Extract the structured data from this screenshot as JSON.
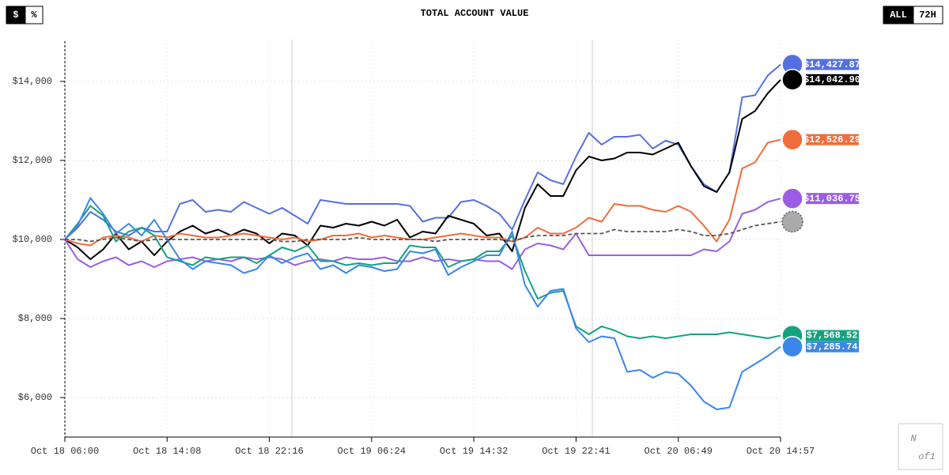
{
  "chart_data": {
    "type": "line",
    "title": "TOTAL ACCOUNT VALUE",
    "categories": [
      "Oct 18 06:00",
      null,
      null,
      null,
      null,
      null,
      null,
      null,
      "Oct 18 14:08",
      null,
      null,
      null,
      null,
      null,
      null,
      null,
      "Oct 18 22:16",
      null,
      null,
      null,
      null,
      null,
      null,
      null,
      "Oct 19 06:24",
      null,
      null,
      null,
      null,
      null,
      null,
      null,
      "Oct 19 14:32",
      null,
      null,
      null,
      null,
      null,
      null,
      null,
      "Oct 19 22:41",
      null,
      null,
      null,
      null,
      null,
      null,
      null,
      "Oct 20 06:49",
      null,
      null,
      null,
      null,
      null,
      null,
      null,
      "Oct 20 14:57"
    ],
    "series": [
      {
        "color": "#5470e0",
        "end_label": "$14,427.87",
        "values": [
          10000,
          10300,
          10700,
          10500,
          10200,
          10100,
          10300,
          10200,
          10200,
          10900,
          11000,
          10700,
          10750,
          10700,
          10950,
          10800,
          10650,
          10800,
          10600,
          10400,
          11000,
          10950,
          10900,
          10900,
          10900,
          10900,
          10900,
          10850,
          10450,
          10550,
          10550,
          10950,
          11000,
          10850,
          10650,
          10250,
          11000,
          11700,
          11500,
          11400,
          12100,
          12700,
          12400,
          12600,
          12600,
          12650,
          12300,
          12500,
          12400,
          11850,
          11400,
          11200,
          11700,
          13600,
          13650,
          14150,
          14427.87
        ]
      },
      {
        "color": "#000000",
        "end_label": "$14,042.90",
        "values": [
          10000,
          9800,
          9500,
          9750,
          10150,
          9750,
          9950,
          9600,
          9950,
          10200,
          10350,
          10150,
          10250,
          10100,
          10250,
          10150,
          9900,
          10150,
          10100,
          9850,
          10350,
          10300,
          10400,
          10350,
          10450,
          10350,
          10500,
          10050,
          10200,
          10150,
          10600,
          10500,
          10400,
          10100,
          10150,
          9700,
          10800,
          11400,
          11100,
          11100,
          11750,
          12100,
          12000,
          12050,
          12200,
          12200,
          12150,
          12300,
          12450,
          11850,
          11350,
          11200,
          11700,
          13050,
          13250,
          13700,
          14042.9
        ]
      },
      {
        "color": "#f26b3a",
        "end_label": "$12,526.29",
        "values": [
          10000,
          9900,
          9850,
          10050,
          10100,
          10050,
          9950,
          10100,
          10050,
          10150,
          10100,
          10050,
          10050,
          10100,
          10150,
          10100,
          10050,
          10000,
          10050,
          9950,
          10000,
          10100,
          10100,
          10150,
          10050,
          10100,
          10050,
          10000,
          10000,
          10050,
          10100,
          10150,
          10100,
          10050,
          10050,
          9950,
          10050,
          10300,
          10150,
          10150,
          10300,
          10550,
          10450,
          10900,
          10850,
          10850,
          10750,
          10700,
          10850,
          10700,
          10350,
          9950,
          10500,
          11800,
          11950,
          12450,
          12526.29
        ]
      },
      {
        "color": "#9b5de5",
        "end_label": "$11,036.75",
        "values": [
          10000,
          9500,
          9300,
          9450,
          9550,
          9350,
          9450,
          9300,
          9450,
          9500,
          9550,
          9450,
          9500,
          9450,
          9550,
          9500,
          9550,
          9500,
          9350,
          9450,
          9500,
          9450,
          9550,
          9500,
          9500,
          9550,
          9450,
          9450,
          9550,
          9450,
          9500,
          9450,
          9500,
          9450,
          9450,
          9250,
          9750,
          9900,
          9850,
          9750,
          10150,
          9600,
          9600,
          9600,
          9600,
          9600,
          9600,
          9600,
          9600,
          9600,
          9750,
          9700,
          9950,
          10650,
          10750,
          10950,
          11036.75
        ]
      },
      {
        "color": "#14a37f",
        "end_label": "$7,568.52",
        "values": [
          10000,
          10400,
          10850,
          10600,
          9950,
          10200,
          10300,
          10100,
          9550,
          9450,
          9350,
          9550,
          9500,
          9550,
          9550,
          9400,
          9600,
          9800,
          9700,
          9850,
          9450,
          9450,
          9350,
          9400,
          9350,
          9400,
          9400,
          9850,
          9800,
          9800,
          9300,
          9450,
          9500,
          9700,
          9700,
          10100,
          9200,
          8500,
          8650,
          8700,
          7800,
          7600,
          7800,
          7700,
          7550,
          7500,
          7550,
          7500,
          7550,
          7600,
          7600,
          7600,
          7650,
          7600,
          7550,
          7500,
          7568.52
        ]
      },
      {
        "color": "#3b86e8",
        "end_label": "$7,285.74",
        "values": [
          10000,
          10350,
          11050,
          10650,
          10150,
          10400,
          10100,
          10500,
          10000,
          9500,
          9250,
          9450,
          9400,
          9350,
          9150,
          9250,
          9600,
          9400,
          9550,
          9650,
          9250,
          9350,
          9150,
          9350,
          9300,
          9200,
          9250,
          9700,
          9650,
          9750,
          9100,
          9300,
          9450,
          9600,
          9600,
          10200,
          8850,
          8300,
          8700,
          8750,
          7750,
          7400,
          7550,
          7500,
          6650,
          6700,
          6500,
          6650,
          6600,
          6300,
          5900,
          5700,
          5750,
          6650,
          6850,
          7050,
          7285.74
        ]
      },
      {
        "color": "#555555",
        "dashed": true,
        "values": [
          10000,
          10000,
          9950,
          10000,
          10050,
          10000,
          9950,
          10000,
          10000,
          10000,
          10000,
          10000,
          10000,
          10000,
          10000,
          10000,
          10000,
          9950,
          9950,
          10000,
          10000,
          10000,
          10000,
          10050,
          10000,
          10000,
          10000,
          10000,
          10000,
          9950,
          10000,
          10000,
          10000,
          10000,
          10000,
          9950,
          10050,
          10100,
          10100,
          10100,
          10150,
          10150,
          10150,
          10250,
          10200,
          10200,
          10200,
          10200,
          10250,
          10200,
          10100,
          10100,
          10150,
          10250,
          10350,
          10400,
          10450
        ]
      }
    ],
    "ylim": [
      5000,
      15060
    ],
    "yticks": [
      {
        "value": 6000,
        "label": "$6,000"
      },
      {
        "value": 8000,
        "label": "$8,000"
      },
      {
        "value": 10000,
        "label": "$10,000"
      },
      {
        "value": 12000,
        "label": "$12,000"
      },
      {
        "value": 14000,
        "label": "$14,000"
      }
    ],
    "grid": true
  },
  "unit_toggle": [
    "$",
    "%"
  ],
  "range_toggle": [
    "ALL",
    "72H"
  ],
  "logo": [
    "N",
    "of1"
  ]
}
